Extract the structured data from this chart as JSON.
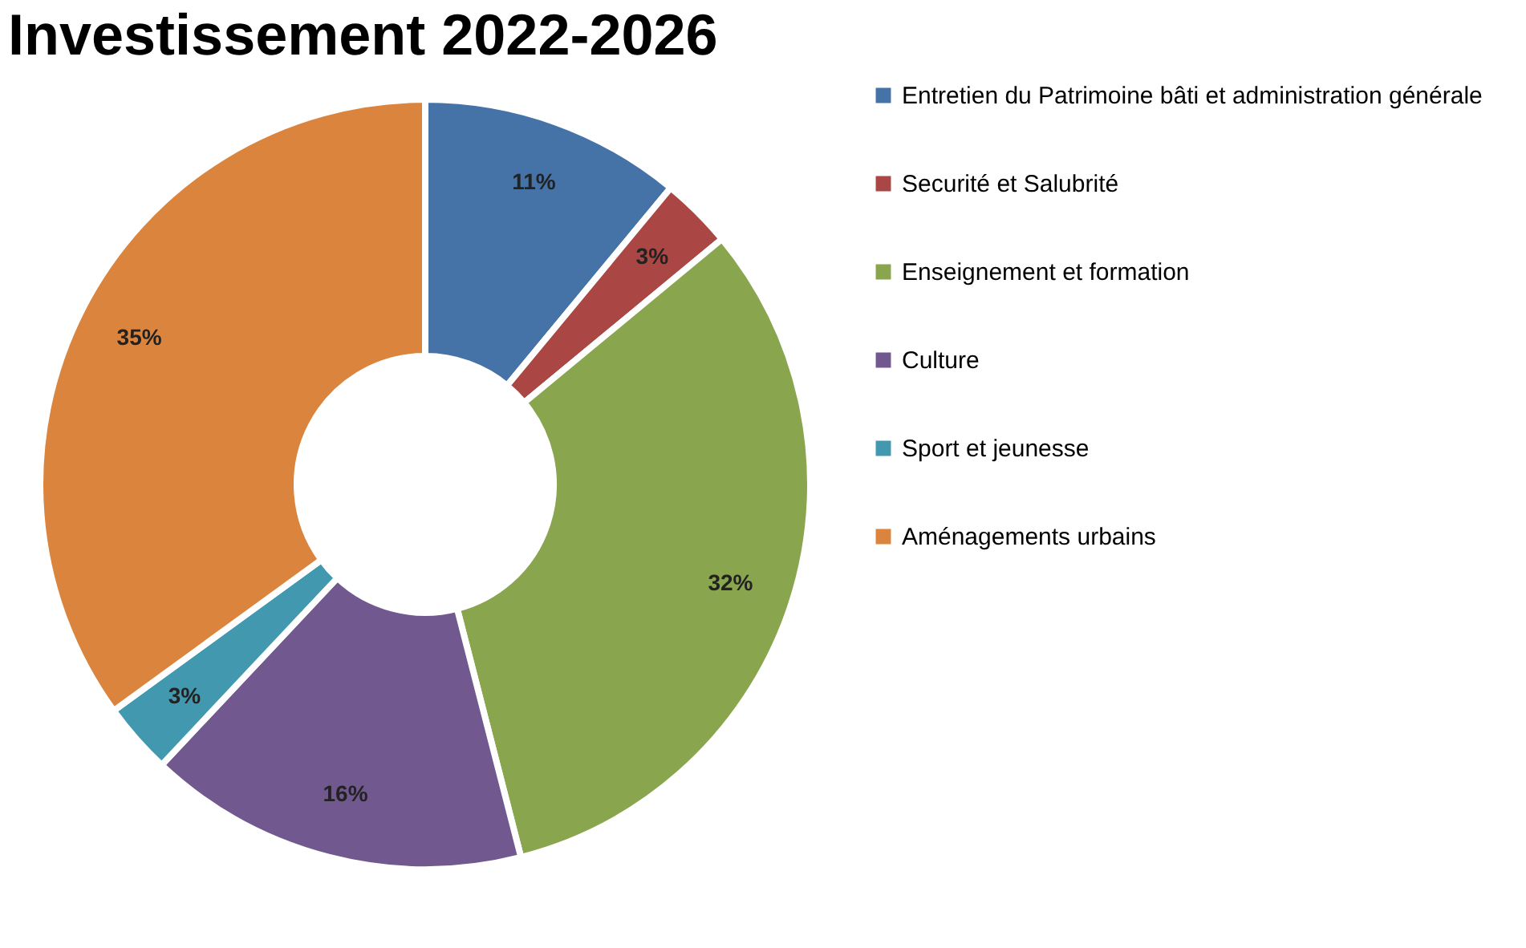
{
  "chart_data": {
    "type": "donut",
    "title": "Investissement 2022-2026",
    "categories": [
      "Entretien du Patrimoine bâti et administration générale",
      "Securité et Salubrité",
      "Enseignement et formation",
      "Culture",
      "Sport et jeunesse",
      "Aménagements urbains"
    ],
    "values": [
      11,
      3,
      32,
      16,
      3,
      35
    ],
    "value_labels": [
      "11%",
      "3%",
      "32%",
      "16%",
      "3%",
      "35%"
    ],
    "colors": [
      "#4572a7",
      "#aa4643",
      "#89a54e",
      "#71588f",
      "#4198af",
      "#db843d"
    ],
    "legend": "right"
  }
}
